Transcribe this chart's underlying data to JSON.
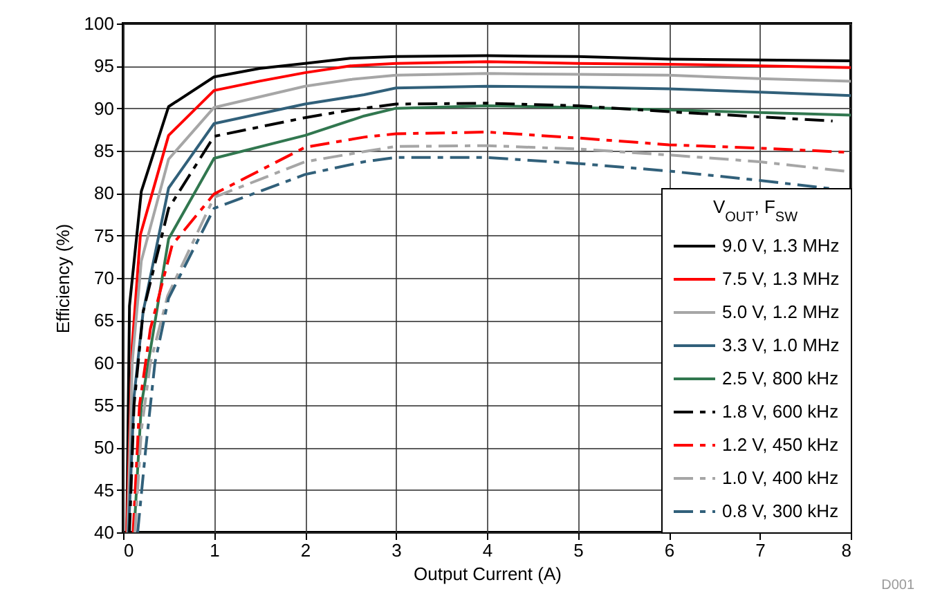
{
  "chart_data": {
    "type": "line",
    "xlabel": "Output Current (A)",
    "ylabel": "Efficiency (%)",
    "legend_title": "V$_{OUT}$, F$_{SW}$",
    "legend": "bottom right",
    "grid": true,
    "marker": "none",
    "xlim": [
      0,
      8
    ],
    "ylim": [
      40,
      100
    ],
    "xticks": [
      0,
      1,
      2,
      3,
      4,
      5,
      6,
      7,
      8
    ],
    "yticks": [
      40,
      45,
      50,
      55,
      60,
      65,
      70,
      75,
      80,
      85,
      90,
      95,
      100
    ],
    "annotations": [
      "D001"
    ],
    "series": [
      {
        "name": "9.0 V, 1.3 MHz",
        "color": "#000000",
        "line_style": "solid",
        "x": [
          0.04,
          0.07,
          0.2,
          0.5,
          1,
          1.5,
          2,
          2.5,
          3,
          4,
          5,
          6,
          7,
          8
        ],
        "values": [
          40,
          66.7,
          80.2,
          90.2,
          93.7,
          94.7,
          95.3,
          95.9,
          96.1,
          96.2,
          96.1,
          95.8,
          95.7,
          95.6
        ]
      },
      {
        "name": "7.5 V, 1.3 MHz",
        "color": "#ff0000",
        "line_style": "solid",
        "x": [
          0.04,
          0.1,
          0.19,
          0.5,
          1,
          1.5,
          2,
          2.5,
          3,
          4,
          5,
          6,
          7,
          8
        ],
        "values": [
          40,
          62,
          75.1,
          86.8,
          92.1,
          93.2,
          94.2,
          95,
          95.3,
          95.5,
          95.3,
          95.2,
          95,
          94.8
        ]
      },
      {
        "name": "5.0 V, 1.2 MHz",
        "color": "#a6a6a6",
        "line_style": "solid",
        "x": [
          0.05,
          0.1,
          0.2,
          0.5,
          1,
          2,
          2.5,
          3,
          4,
          5,
          6,
          7,
          8
        ],
        "values": [
          40,
          60,
          72,
          84,
          90.1,
          92.6,
          93.4,
          93.9,
          94.1,
          94,
          93.9,
          93.5,
          93.2
        ]
      },
      {
        "name": "3.3 V, 1.0 MHz",
        "color": "#31607a",
        "line_style": "solid",
        "x": [
          0.06,
          0.12,
          0.22,
          0.5,
          1,
          2,
          2.65,
          3,
          4,
          5,
          6,
          7,
          8
        ],
        "values": [
          40,
          56,
          66,
          80.6,
          88.2,
          90.5,
          91.6,
          92.4,
          92.6,
          92.5,
          92.3,
          91.9,
          91.5
        ]
      },
      {
        "name": "2.5 V, 800 kHz",
        "color": "#31774f",
        "line_style": "solid",
        "x": [
          0.12,
          0.2,
          0.5,
          1,
          2,
          2.65,
          3,
          4,
          5,
          6,
          7,
          8
        ],
        "values": [
          40,
          55,
          74.6,
          84.1,
          86.8,
          89.1,
          90,
          90.3,
          90.1,
          89.8,
          89.5,
          89.2
        ]
      },
      {
        "name": "1.8 V, 600 kHz",
        "color": "#000000",
        "line_style": "dashed",
        "x": [
          0.07,
          0.12,
          0.22,
          0.5,
          1,
          2,
          2.5,
          3,
          4,
          5,
          6,
          7,
          7.8
        ],
        "values": [
          40,
          55,
          66,
          78.2,
          86.7,
          88.9,
          89.8,
          90.5,
          90.6,
          90.3,
          89.6,
          89,
          88.5
        ]
      },
      {
        "name": "1.2 V, 450 kHz",
        "color": "#ff0000",
        "line_style": "dashed",
        "x": [
          0.11,
          0.18,
          0.3,
          0.54,
          1,
          2,
          2.65,
          3,
          4,
          5,
          6,
          7,
          8
        ],
        "values": [
          40,
          55,
          64,
          73.9,
          79.9,
          85.4,
          86.6,
          87,
          87.2,
          86.5,
          85.7,
          85.3,
          84.8
        ]
      },
      {
        "name": "1.0 V, 400 kHz",
        "color": "#a6a6a6",
        "line_style": "dashed",
        "x": [
          0.13,
          0.2,
          0.3,
          0.49,
          1,
          2,
          2.65,
          3,
          4,
          5,
          6,
          7,
          8
        ],
        "values": [
          40,
          52,
          60,
          67.9,
          79.5,
          83.7,
          84.9,
          85.5,
          85.6,
          85.2,
          84.5,
          83.7,
          82.5
        ]
      },
      {
        "name": "0.8 V, 300 kHz",
        "color": "#31607a",
        "line_style": "dashed",
        "x": [
          0.16,
          0.25,
          0.35,
          0.5,
          1,
          2,
          2.65,
          3,
          4,
          5,
          6,
          7,
          7.8
        ],
        "values": [
          40,
          50,
          60,
          67.6,
          78.2,
          82.2,
          83.7,
          84.2,
          84.2,
          83.5,
          82.6,
          81.5,
          80.5
        ]
      }
    ]
  }
}
